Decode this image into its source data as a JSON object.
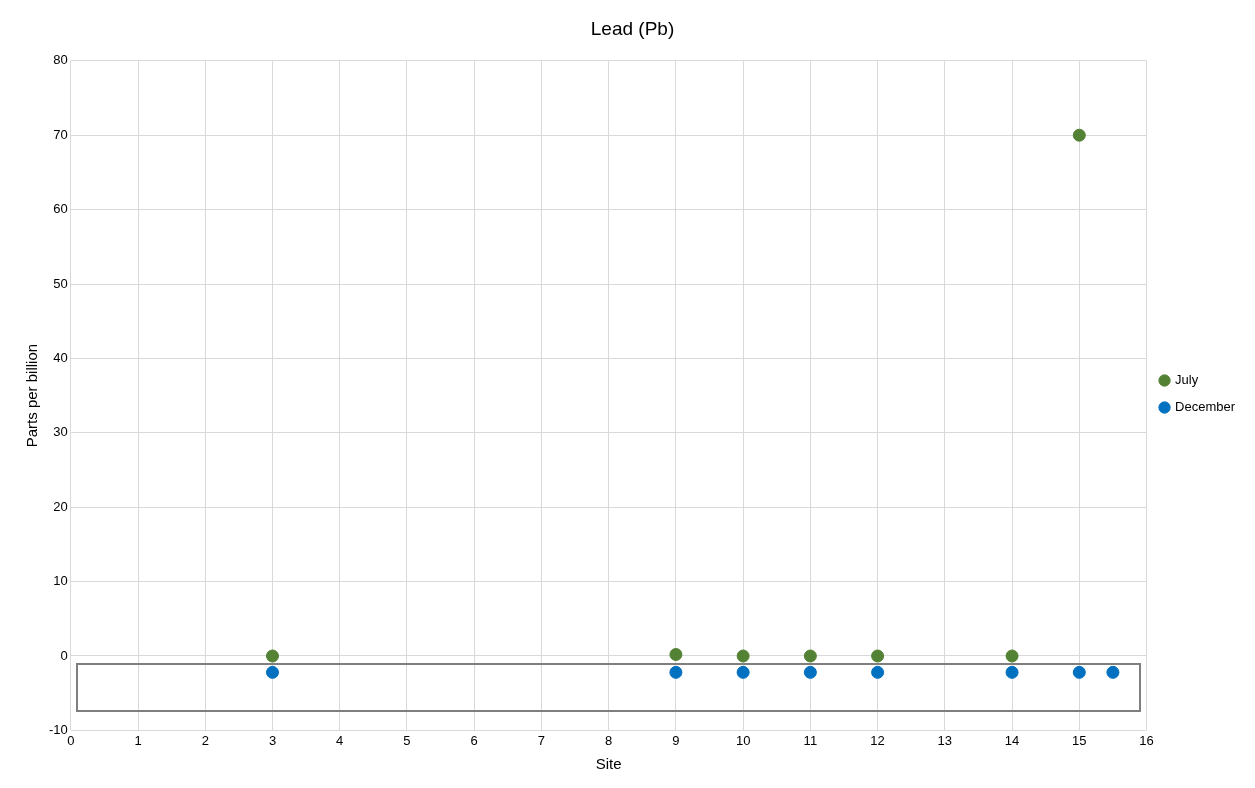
{
  "chart_data": {
    "type": "scatter",
    "title": "Lead (Pb)",
    "xlabel": "Site",
    "ylabel": "Parts per billion",
    "series": [
      {
        "name": "July",
        "color": "#548235",
        "x": [
          3,
          9,
          10,
          11,
          12,
          14,
          15
        ],
        "values": [
          0,
          0.2,
          0,
          0,
          0,
          0,
          70
        ]
      },
      {
        "name": "December",
        "color": "#0070c0",
        "x": [
          3,
          9,
          10,
          11,
          12,
          14,
          15,
          15.5
        ],
        "values": [
          -2.2,
          -2.2,
          -2.2,
          -2.2,
          -2.2,
          -2.2,
          -2.2,
          -2.2
        ]
      }
    ],
    "xlim": [
      0,
      16
    ],
    "xticks": [
      0,
      1,
      2,
      3,
      4,
      5,
      6,
      7,
      8,
      9,
      10,
      11,
      12,
      13,
      14,
      15,
      16
    ],
    "ylim": [
      -10,
      80
    ],
    "yticks": [
      -10,
      0,
      10,
      20,
      30,
      40,
      50,
      60,
      70,
      80
    ],
    "grid": true,
    "legend": "right",
    "marker": "circle"
  }
}
